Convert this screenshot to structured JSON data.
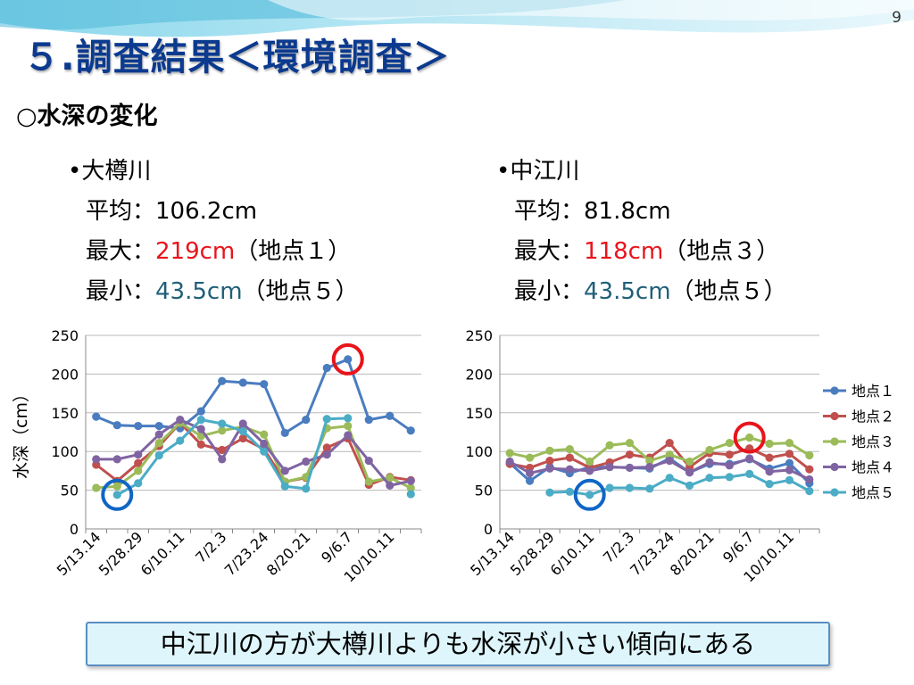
{
  "page_number": "9",
  "title": "５.調査結果＜環境調査＞",
  "subtitle": "○水深の変化",
  "rivers": [
    {
      "name": "•大樽川",
      "avg_label": "平均：",
      "avg_value": "106.2cm",
      "max_label": "最大：",
      "max_value": "219cm",
      "max_note": "（地点１）",
      "min_label": "最小：",
      "min_value": "43.5cm",
      "min_note": "（地点５）"
    },
    {
      "name": "•中江川",
      "avg_label": "平均：",
      "avg_value": "81.8cm",
      "max_label": "最大：",
      "max_value": "118cm",
      "max_note": "（地点３）",
      "min_label": "最小：",
      "min_value": "43.5cm",
      "min_note": "（地点５）"
    }
  ],
  "conclusion": "中江川の方が大樽川よりも水深が小さい傾向にある",
  "colors": {
    "title": "#0b3a8f",
    "highlight_max": "#e8141b",
    "highlight_min": "#1f5f79",
    "max_circle": "#e8141b",
    "min_circle": "#1066c4"
  },
  "chart_data": [
    {
      "type": "line",
      "title": "",
      "xlabel": "",
      "ylabel": "水深（cm）",
      "ylim": [
        0,
        250
      ],
      "yticks": [
        0,
        50,
        100,
        150,
        200,
        250
      ],
      "grid": true,
      "legend": "none",
      "x_tick_labels": [
        "5/13.14",
        "5/28.29",
        "6/10.11",
        "7/2.3",
        "7/23.24",
        "8/20.21",
        "9/6.7",
        "10/10.11"
      ],
      "x_tick_positions": [
        0,
        2,
        4,
        6,
        8,
        10,
        12,
        14
      ],
      "x_count": 16,
      "series": [
        {
          "name": "地点１",
          "color": "#4a7cc0",
          "values": [
            145,
            134,
            133,
            133,
            130,
            152,
            191,
            189,
            187,
            124,
            141,
            208,
            219,
            141,
            146,
            127
          ]
        },
        {
          "name": "地点２",
          "color": "#c0504d",
          "values": [
            83,
            62,
            85,
            107,
            137,
            109,
            102,
            117,
            103,
            61,
            66,
            105,
            117,
            57,
            67,
            63
          ]
        },
        {
          "name": "地点３",
          "color": "#9bbb59",
          "values": [
            53,
            55,
            75,
            111,
            137,
            120,
            127,
            132,
            122,
            61,
            67,
            130,
            133,
            61,
            66,
            53
          ]
        },
        {
          "name": "地点４",
          "color": "#8064a2",
          "values": [
            90,
            90,
            96,
            122,
            141,
            129,
            90,
            136,
            110,
            75,
            87,
            96,
            121,
            88,
            56,
            62
          ]
        },
        {
          "name": "地点５",
          "color": "#4bacc6",
          "values": [
            null,
            44,
            59,
            95,
            114,
            141,
            136,
            126,
            100,
            55,
            52,
            142,
            143,
            null,
            null,
            45
          ]
        }
      ],
      "annotations": [
        {
          "shape": "circle",
          "color": "#e8141b",
          "x_index": 12,
          "y": 219
        },
        {
          "shape": "circle",
          "color": "#1066c4",
          "x_index": 1,
          "y": 44
        }
      ]
    },
    {
      "type": "line",
      "title": "",
      "xlabel": "",
      "ylabel": "",
      "ylim": [
        0,
        250
      ],
      "yticks": [
        0,
        50,
        100,
        150,
        200,
        250
      ],
      "grid": true,
      "legend": "right",
      "x_tick_labels": [
        "5/13.14",
        "5/28.29",
        "6/10.11",
        "7/2.3",
        "7/23.24",
        "8/20.21",
        "9/6.7",
        "10/10.11"
      ],
      "x_tick_positions": [
        0,
        2,
        4,
        6,
        8,
        10,
        12,
        14
      ],
      "x_count": 16,
      "series": [
        {
          "name": "地点１",
          "color": "#4a7cc0",
          "values": [
            85,
            62,
            80,
            72,
            80,
            80,
            79,
            78,
            91,
            73,
            84,
            84,
            90,
            78,
            85,
            59
          ]
        },
        {
          "name": "地点２",
          "color": "#c0504d",
          "values": [
            84,
            79,
            88,
            92,
            79,
            86,
            96,
            92,
            111,
            80,
            98,
            96,
            104,
            92,
            97,
            77
          ]
        },
        {
          "name": "地点３",
          "color": "#9bbb59",
          "values": [
            98,
            92,
            101,
            103,
            87,
            108,
            111,
            88,
            96,
            87,
            102,
            111,
            118,
            110,
            111,
            95
          ]
        },
        {
          "name": "地点４",
          "color": "#8064a2",
          "values": [
            87,
            72,
            78,
            77,
            75,
            80,
            79,
            80,
            88,
            73,
            86,
            82,
            91,
            74,
            76,
            64
          ]
        },
        {
          "name": "地点５",
          "color": "#4bacc6",
          "values": [
            null,
            null,
            47,
            48,
            44,
            53,
            53,
            52,
            66,
            56,
            66,
            67,
            71,
            58,
            63,
            49
          ]
        }
      ],
      "annotations": [
        {
          "shape": "circle",
          "color": "#e8141b",
          "x_index": 12,
          "y": 118
        },
        {
          "shape": "circle",
          "color": "#1066c4",
          "x_index": 4,
          "y": 44
        }
      ]
    }
  ]
}
